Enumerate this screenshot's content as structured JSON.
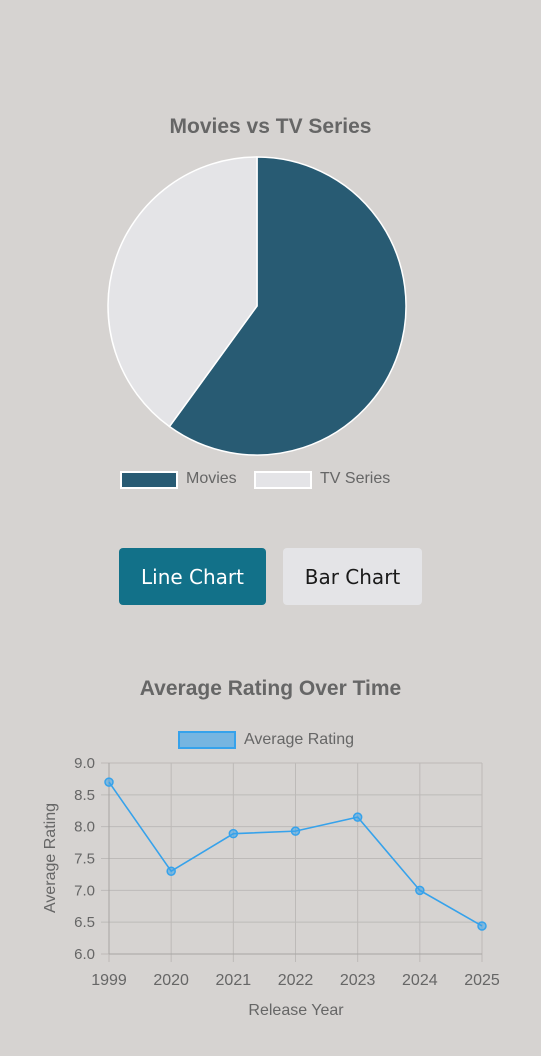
{
  "pie_chart": {
    "title": "Movies vs TV Series",
    "legend": [
      {
        "label": "Movies",
        "color": "#285b73"
      },
      {
        "label": "TV Series",
        "color": "#e4e4e7"
      }
    ]
  },
  "buttons": {
    "line_chart_label": "Line Chart",
    "bar_chart_label": "Bar Chart",
    "active": "Line Chart"
  },
  "line_chart": {
    "title": "Average Rating Over Time",
    "legend_label": "Average Rating",
    "line_color": "#36a2eb"
  },
  "chart_data": [
    {
      "type": "pie",
      "title": "Movies vs TV Series",
      "categories": [
        "Movies",
        "TV Series"
      ],
      "values": [
        60,
        40
      ],
      "colors": [
        "#285b73",
        "#e4e4e7"
      ],
      "legend": "top-center below chart"
    },
    {
      "type": "line",
      "title": "Average Rating Over Time",
      "xlabel": "Release Year",
      "ylabel": "Average Rating",
      "x": [
        "1999",
        "2020",
        "2021",
        "2022",
        "2023",
        "2024",
        "2025"
      ],
      "series": [
        {
          "name": "Average Rating",
          "values": [
            8.7,
            7.3,
            7.89,
            7.93,
            8.15,
            7.0,
            6.44
          ]
        }
      ],
      "ylim": [
        6.0,
        9.0
      ],
      "yticks": [
        "6.0",
        "6.5",
        "7.0",
        "7.5",
        "8.0",
        "8.5",
        "9.0"
      ],
      "grid": true,
      "legend": "top"
    }
  ]
}
